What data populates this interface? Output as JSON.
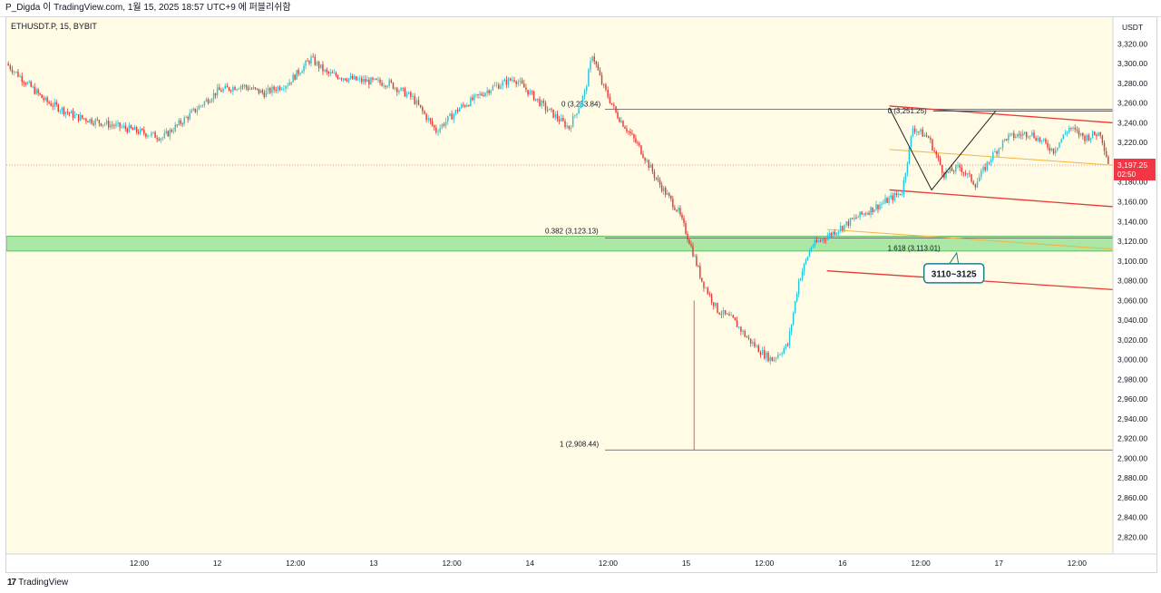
{
  "header": {
    "credit": "P_Digda 이 TradingView.com, 1월 15, 2025 18:57 UTC+9 에 퍼블리쉬함"
  },
  "symbol": {
    "label": "ETHUSDT.P, 15, BYBIT"
  },
  "footer": {
    "brand": "TradingView",
    "logo_mark": "17"
  },
  "colors": {
    "bull": "#26c6da",
    "bear": "#e53935",
    "zone": "#8fe08f",
    "trend": "#e53935",
    "fib_ext": "#f5b342",
    "background": "#fffbe5"
  },
  "chart_data": {
    "type": "candlestick",
    "symbol": "ETHUSDT.P",
    "timeframe": "15",
    "exchange": "BYBIT",
    "currency": "USDT",
    "y_ticks": [
      "3,320.00",
      "3,300.00",
      "3,280.00",
      "3,260.00",
      "3,240.00",
      "3,220.00",
      "3,200.00",
      "3,180.00",
      "3,160.00",
      "3,140.00",
      "3,120.00",
      "3,100.00",
      "3,080.00",
      "3,060.00",
      "3,040.00",
      "3,020.00",
      "3,000.00",
      "2,980.00",
      "2,960.00",
      "2,940.00",
      "2,920.00",
      "2,900.00",
      "2,880.00",
      "2,860.00",
      "2,840.00",
      "2,820.00"
    ],
    "y_tick_values": [
      3320,
      3300,
      3280,
      3260,
      3240,
      3220,
      3200,
      3180,
      3160,
      3140,
      3120,
      3100,
      3080,
      3060,
      3040,
      3020,
      3000,
      2980,
      2960,
      2940,
      2920,
      2900,
      2880,
      2860,
      2840,
      2820
    ],
    "x_ticks": [
      "12:00",
      "12",
      "12:00",
      "13",
      "12:00",
      "14",
      "12:00",
      "15",
      "12:00",
      "16",
      "12:00",
      "17",
      "12:00"
    ],
    "x_tick_times": [
      0.5,
      1,
      1.5,
      2,
      2.5,
      3,
      3.5,
      4,
      4.5,
      5,
      5.5,
      6,
      6.5
    ],
    "x_range_days": [
      -0.35,
      6.73
    ],
    "ylim": [
      2803,
      3347
    ],
    "last_price": {
      "value": "3,197.25",
      "countdown": "02:50"
    },
    "key_points": [
      {
        "t": -0.35,
        "price": 3300
      },
      {
        "t": -0.25,
        "price": 3285
      },
      {
        "t": -0.1,
        "price": 3262
      },
      {
        "t": 0.1,
        "price": 3246
      },
      {
        "t": 0.4,
        "price": 3235
      },
      {
        "t": 0.65,
        "price": 3225
      },
      {
        "t": 0.8,
        "price": 3245
      },
      {
        "t": 1.0,
        "price": 3272
      },
      {
        "t": 1.15,
        "price": 3278
      },
      {
        "t": 1.3,
        "price": 3270
      },
      {
        "t": 1.45,
        "price": 3280
      },
      {
        "t": 1.6,
        "price": 3305
      },
      {
        "t": 1.7,
        "price": 3290
      },
      {
        "t": 1.9,
        "price": 3283
      },
      {
        "t": 2.1,
        "price": 3280
      },
      {
        "t": 2.25,
        "price": 3265
      },
      {
        "t": 2.4,
        "price": 3232
      },
      {
        "t": 2.55,
        "price": 3255
      },
      {
        "t": 2.75,
        "price": 3275
      },
      {
        "t": 2.9,
        "price": 3285
      },
      {
        "t": 3.0,
        "price": 3270
      },
      {
        "t": 3.1,
        "price": 3255
      },
      {
        "t": 3.25,
        "price": 3235
      },
      {
        "t": 3.35,
        "price": 3270
      },
      {
        "t": 3.4,
        "price": 3310
      },
      {
        "t": 3.46,
        "price": 3280
      },
      {
        "t": 3.55,
        "price": 3250
      },
      {
        "t": 3.7,
        "price": 3215
      },
      {
        "t": 3.82,
        "price": 3180
      },
      {
        "t": 3.95,
        "price": 3150
      },
      {
        "t": 4.02,
        "price": 3120
      },
      {
        "t": 4.1,
        "price": 3080
      },
      {
        "t": 4.2,
        "price": 3050
      },
      {
        "t": 4.3,
        "price": 3040
      },
      {
        "t": 4.4,
        "price": 3020
      },
      {
        "t": 4.5,
        "price": 3005
      },
      {
        "t": 4.55,
        "price": 3000
      },
      {
        "t": 4.65,
        "price": 3015
      },
      {
        "t": 4.72,
        "price": 3080
      },
      {
        "t": 4.8,
        "price": 3115
      },
      {
        "t": 4.95,
        "price": 3130
      },
      {
        "t": 5.1,
        "price": 3145
      },
      {
        "t": 5.25,
        "price": 3158
      },
      {
        "t": 5.38,
        "price": 3170
      },
      {
        "t": 5.45,
        "price": 3235
      },
      {
        "t": 5.55,
        "price": 3225
      },
      {
        "t": 5.65,
        "price": 3188
      },
      {
        "t": 5.75,
        "price": 3195
      },
      {
        "t": 5.85,
        "price": 3178
      },
      {
        "t": 5.95,
        "price": 3205
      },
      {
        "t": 6.05,
        "price": 3225
      },
      {
        "t": 6.2,
        "price": 3230
      },
      {
        "t": 6.35,
        "price": 3212
      },
      {
        "t": 6.45,
        "price": 3235
      },
      {
        "t": 6.55,
        "price": 3225
      },
      {
        "t": 6.65,
        "price": 3230
      },
      {
        "t": 6.7,
        "price": 3200
      }
    ],
    "fib_levels": [
      {
        "label": "0 (3,253.84)",
        "price": 3253.84
      },
      {
        "label": "0.382 (3,123.13)",
        "price": 3123.13
      },
      {
        "label": "1 (2,908.44)",
        "price": 2908.44
      }
    ],
    "fib_extension": {
      "label": "0 (3,251.25)",
      "price": 3251.25
    },
    "fib_ext_level": {
      "label": "1.618 (3,113.01)",
      "price": 3113.01
    },
    "support_zone": {
      "low": 3110,
      "high": 3125
    },
    "annotation": {
      "text": "3110~3125",
      "price": 3110
    },
    "trendlines": [
      {
        "t1": 5.3,
        "p1": 3257,
        "t2": 6.73,
        "p2": 3240
      },
      {
        "t1": 5.3,
        "p1": 3172,
        "t2": 6.73,
        "p2": 3155
      },
      {
        "t1": 4.9,
        "p1": 3090,
        "t2": 6.73,
        "p2": 3071
      },
      {
        "t1": 5.58,
        "p1": 3252,
        "t2": 6.73,
        "p2": 3252
      }
    ],
    "orange_lines": [
      {
        "t1": 5.3,
        "p1": 3213,
        "t2": 6.73,
        "p2": 3197
      },
      {
        "t1": 4.9,
        "p1": 3132,
        "t2": 6.73,
        "p2": 3112
      }
    ],
    "pattern": [
      {
        "t": 5.3,
        "price": 3255
      },
      {
        "t": 5.57,
        "price": 3172
      },
      {
        "t": 5.98,
        "price": 3252
      }
    ],
    "price_dotted_line": 3197.25
  }
}
